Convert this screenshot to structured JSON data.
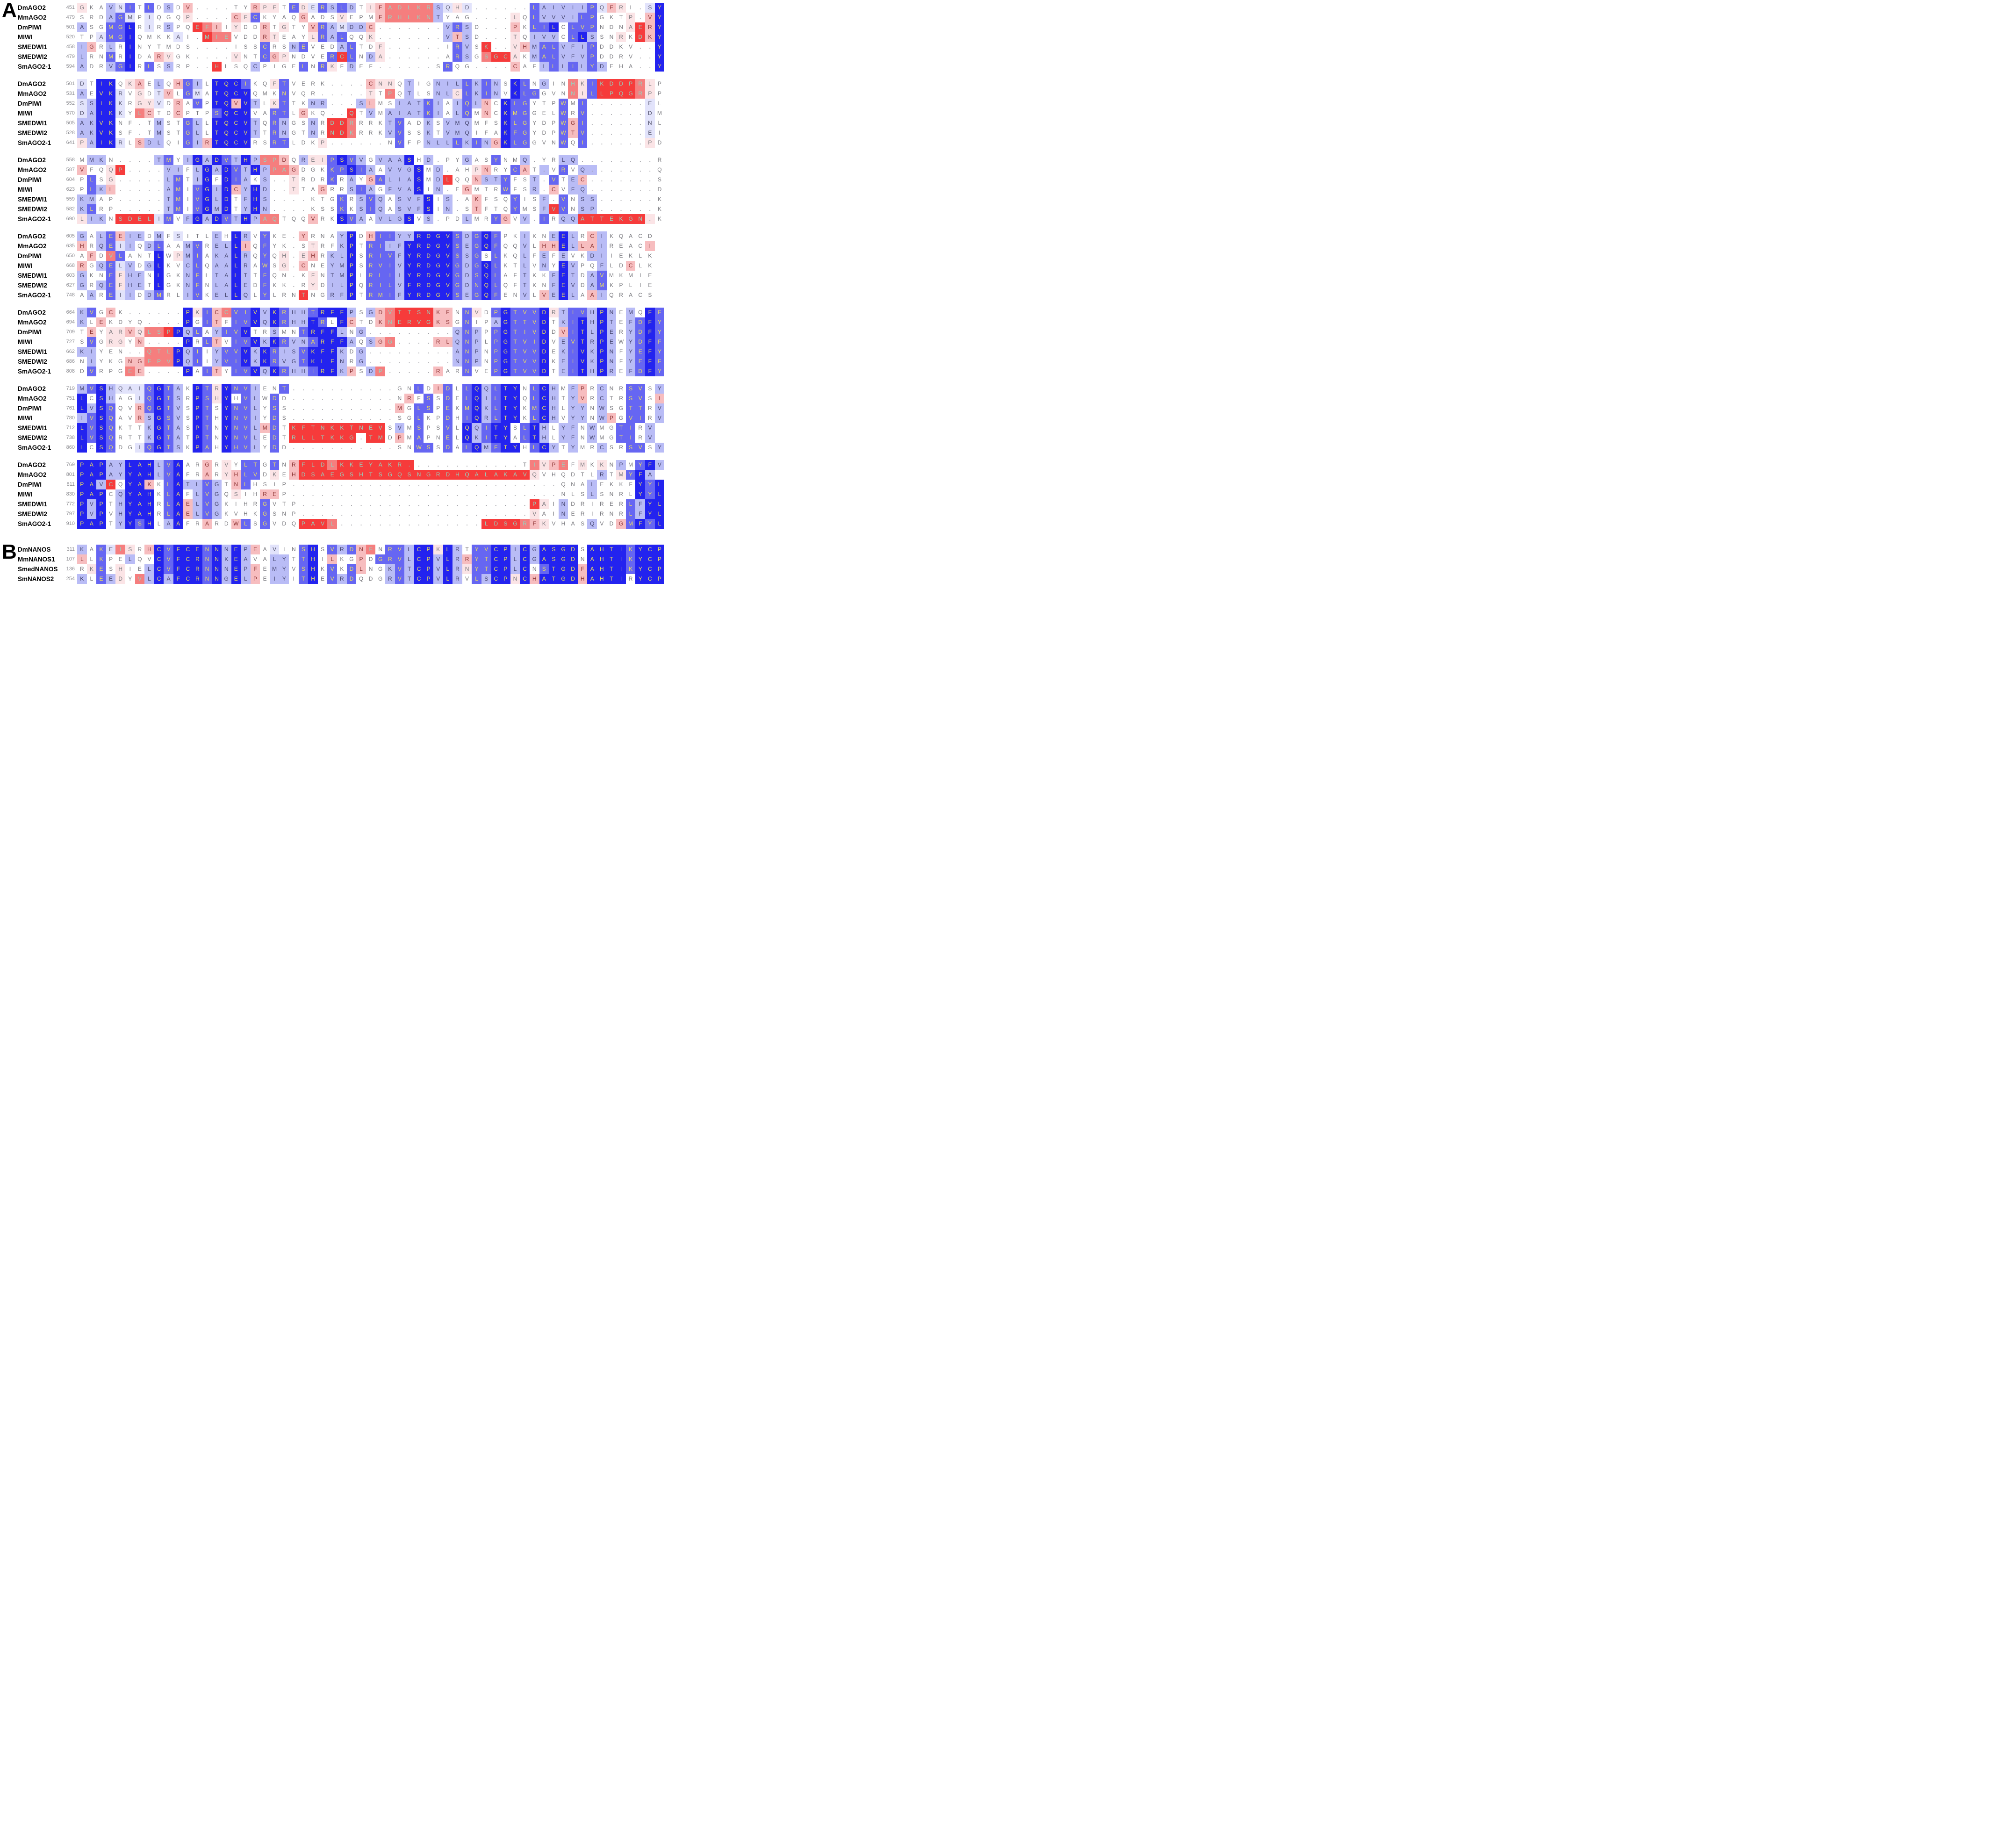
{
  "figure": {
    "panel_a_label": "A",
    "panel_b_label": "B"
  },
  "palette": {
    "0": "#2323ef",
    "1": "#6666f2",
    "2": "#b9bcf6",
    "3": "#e2e3fb",
    "4": "#ffffff",
    "5": "#fbe4e6",
    "6": "#f7bdbf",
    "7": "#f57e7e",
    "8": "#f63b3b"
  },
  "letter_colors": {
    "0": "#f0e05a",
    "1": "#f0e05a",
    "2": "#45456e",
    "3": "#55556e",
    "4": "#77777c",
    "5": "#77777c",
    "6": "#8c3333",
    "7": "#8fd7c2",
    "8": "#8fd7c2",
    "dot": "#9a9aa0"
  },
  "panel_a": {
    "blocks": [
      {
        "rows": [
          {
            "label": "DmAGO2",
            "start": "451",
            "seq": "GKAVNITLDSDV....TYRPFTEDERSLDTIFADLKRSQHD......LAIVIIPQFRI.SY",
            "col": "5442314142464444446554153121245677777235344444412222213654430"
          },
          {
            "label": "MmAGO2",
            "start": "479",
            "seq": "SRDAGMPIQGQP....CFCKYAQGADSVEPMFRHLKNTYAG....LQLVVVILPGKTP.VY",
            "col": "4442134344454444651444464445444677777244444445412222114445460"
          },
          {
            "label": "DmPIWI",
            "start": "501",
            "seq": "ASGMGLRIRSPQEFIIYDDRTGTYVRAMDDC.......VRSD...PKLILCLVPNDNAERY",
            "col": "2441104342448764544645446123226444444421244446411041114445860"
          },
          {
            "label": "MIWI",
            "start": "520",
            "seq": "TPAMGIQMKKAI.MIEVDDRTEAYLRALQQK.......VTSD...TQIVVCLLSSNRKDKY",
            "col": "4431104444344877444654445121445444444426244445422241024454860"
          },
          {
            "label": "SMEDWI1",
            "start": "458",
            "seq": "IGRLRINYTMDS....ISSCRSNEVEDALTDF......IRVSK..VHMALVFIPDDKV..Y",
            "col": "2642404444444444444144214442144544444441248445621122214444440"
          },
          {
            "label": "SMEDWI2",
            "start": "479",
            "seq": "LRNMRIDARVGK....VNTCGPNDVERCLNDA......ARSGSGCAKMALVFVPDDRV..Y",
            "col": "2441404465444444544165444418142544444441247885421122214444440"
          },
          {
            "label": "SmAGO2-1",
            "start": "594",
            "seq": "ADRVGIRLSSRP..HLSQCPIGELNRKFDEF......SRQG....CAFLLLILYDEHA..Y",
            "col": "2442104142444484442444414154244444444414444446442121212444440"
          }
        ]
      },
      {
        "rows": [
          {
            "label": "DmAGO2",
            "start": "501",
            "seq": "DTIKQKAELQHGILTQCIKQFTVERK....CNNQTIGNILLKINSKLNGINHKIKDDPRLP",
            "col": "3400456424612400014451444444446554244222121240142447518888754"
          },
          {
            "label": "MmAGO2",
            "start": "531",
            "seq": "AEVKRVGDTVLGMATQCVQMKNVQR.....TTPQTLSNLCLKINVKLGGVNNILLPQGRPP",
            "col": "2400345436413400004441444444445474244225121240114447518888754"
          },
          {
            "label": "DmPIWI",
            "start": "552",
            "seq": "SSIKKRGYVDRAVPTQVVTLKTTKNR...SLMSIATKIAIQLNCKLGYTPWMI......EL",
            "col": "3200345534641400602451442244426442221242126401144414144444434"
          },
          {
            "label": "MIWI",
            "start": "570",
            "seq": "DAIKKYLCTDCPTPSQCVVARTLGKQ..QTVMAIATKIALQMNCKMGGELWRV......DM",
            "col": "3200347644644410004411464444842422221242146401144414144444434"
          },
          {
            "label": "SMEDWI1",
            "start": "505",
            "seq": "AKVKNF.TMSTGLLTQCVTQRNGSNRDDRRRKTVADKSVMQMFSKLGYDPWGI......NL",
            "col": "2200444424412400002412442488744421442422244401144416144444434"
          },
          {
            "label": "SMEDWI2",
            "start": "528",
            "seq": "AKVKSF.TMSTGLLTQCVTTRNGTNRNDKRRKVVSSKTVMQIFAKFGYDPWTV......EI",
            "col": "2200444424412400002412442488744421442422244401144416144444434"
          },
          {
            "label": "SmAGO2-1",
            "start": "641",
            "seq": "PAIKRLSDLQIGIRTQCVRSRTLDKP......NVFPNLLLKINGKLGGVNWQI......PD",
            "col": "5200346224412600004411444544444441442221212601144414144444454"
          }
        ]
      },
      {
        "rows": [
          {
            "label": "DmAGO2",
            "start": "558",
            "seq": "MMKN....TMYIGADVTHPSPDQREIPSVVGVAASHD.PYGASYNMQ.YRLQ........R",
            "col": "4224444421420201202776425510124222042444244144244422444444444"
          },
          {
            "label": "MmAGO2",
            "start": "587",
            "seq": "VFQQP....VIFLGADVTHPPAGDGKKPSIAAVVGSMD.AHPNRYCAT.VRVQ.......Q",
            "col": "6445844442242020120277644411012422204244456441642414224444444"
          },
          {
            "label": "DmPIWI",
            "start": "604",
            "seq": "PLSG.....LMTIGFDIAKS..TRDRKRAYGALIASMDLQQNSTYFST.VTEC.......S",
            "col": "4145444442142040124244544414246122204284462214424142644444444"
          },
          {
            "label": "MIWI",
            "start": "623",
            "seq": "PLKL.....AMIVGIDCYHD..TTAGRRSIAGFVASIN.EGMTRWFSR.CVFQ.......D",
            "col": "4126444442141020620244544644212422204244644414424642244444444"
          },
          {
            "label": "SMEDWI1",
            "start": "559",
            "seq": "KMAP.....TMIVGLDTFHS....KTGKRSVQASVFSIS.AKFSQYISF.VNSS......K",
            "col": "2244444442141020420244444441421242220424464441442414224444444"
          },
          {
            "label": "SMEDWI2",
            "start": "582",
            "seq": "KLRP.....TMIVGMDTYHN....KSSKKSIQASVFSIN.STFTQYMSFVVNSP......K",
            "col": "2144444442141020420244444441421242220424464441442814224444444"
          },
          {
            "label": "SmAGO2-1",
            "start": "690",
            "seq": "LIKNSDELIMVFGADVTHPAQTQQVRKSVAAVLGSVS.PDLMRYGVV.IRQQATTEKGN.K",
            "col": "5224888831420201202774446440124222042444244164241422888888854"
          }
        ]
      },
      {
        "rows": [
          {
            "label": "DmAGO2",
            "start": "605",
            "seq": "GALEEIEDMFSITLEHLRVYKE.YRNAYPDHIIYYRDGVSDGQFPKIKNEELRCIKQACD",
            "col": "242162242434442402414446444204611220000121014424420246244444"
          },
          {
            "label": "MmAGO2",
            "start": "635",
            "seq": "HRQEIIQDLAAMVRELLIQFYK.STRFKPTRIIFYRDGVSEGQFQQVLHHELLAIREACI",
            "col": "642132421442142206414444544204112200000121014424660266244446"
          },
          {
            "label": "DmPIWI",
            "start": "650",
            "seq": "AFDVLANTLWPMIAKALRQYQH.EHRKLPSRIVFYRDGVSSGSLKQLFEFEVKDIIEKLK",
            "col": "464714440452142202414545642204111200000121414424242442244444"
          },
          {
            "label": "MIWI",
            "start": "668",
            "seq": "RGQELVDGLKVCLQAALRAWSG.CNEYMPSRVIVYRDGVGDGQLKTLVNYEVPQFLDCLK",
            "col": "642132420442142202414546442204111200000121014424240244244644"
          },
          {
            "label": "SMEDWI1",
            "start": "603",
            "seq": "GKNEFHENLGKNFLTALTTFQN.KFNTMPLRLIIYRDGVGDSQLAFTKKFETDAVMKMIE",
            "col": "244152240442142202414444542204111200000121014424420242144444"
          },
          {
            "label": "SMEDWI2",
            "start": "627",
            "seq": "GRQEFHETLGKNFNLALEDFKK.RYDILPQRILVFRDGVGDNQLQFTKNFEVDAMKPLIE",
            "col": "242152240442142202414444542204111200000121014424420242144444"
          },
          {
            "label": "SmAGO2-1",
            "start": "748",
            "seq": "AAREIIDDMRLIVKELLQLYLRNTNGRFPTRMIFYRDGVSEGQFENVLVEELAAIQRACS",
            "col": "424132421442142202414448442204111200000121014424620246244444"
          }
        ]
      },
      {
        "rows": [
          {
            "label": "DmAGO2",
            "start": "664",
            "seq": "KVGCK......PKICCVIVVKRHHTRFFPSGDVTTSNKFNNVDPGTVVDRTIVHPNEMQFF",
            "col": "2146444444405167110201221000242678888664154101110521120242401"
          },
          {
            "label": "MmAGO2",
            "start": "694",
            "seq": "KLEKDYQ....PGITFIVVQKRHHTRLFCTDKNERVGKSGNIPAGTTVDTKITHPTEFDFY",
            "col": "2464444444404164110201220140644678888664144201110421020242101"
          },
          {
            "label": "DmPIWI",
            "start": "709",
            "seq": "TEYARVQLSPPQLAYIVVTRSMNTRFFLNG.........QNPPPGTIVDDVITLPERYDFY",
            "col": "4645565778021421104424410002424444444442124101110461020242101"
          },
          {
            "label": "MIWI",
            "start": "727",
            "seq": "SVGRGYN....PRLTVIVVKKRVNARFFAQSGG....RLQNPLPGTVIDVEVTRPEWYDFF",
            "col": "4145546444404164110201221000242674444662124101110421020242101"
          },
          {
            "label": "SMEDWI1",
            "start": "662",
            "seq": "KIYEN..QTLPQIIYVVVKKRISVKFFKDG.........ANPNPGTVVDEKIVKPNFYEFY",
            "col": "2244444777021421102012210002424444444442124101110421020242101"
          },
          {
            "label": "SMEDWI2",
            "start": "686",
            "seq": "NIYKGNGFPVPQIIYVIVKKRVGTKLFNRG.........NNPNPGTVVDKEIVKPNFYEFF",
            "col": "4244466777021421102012210002424444444442124101110421020242101"
          },
          {
            "label": "SmAGO2-1",
            "start": "808",
            "seq": "DVRPGEE....PAITYIVVQKRHHIRFKPSDP.....RARNVEPGTVVDTEITHPREFDFY",
            "col": "4144476444404164110201221002642744444644144101110421020242101"
          }
        ]
      },
      {
        "rows": [
          {
            "label": "DmAGO2",
            "start": "719",
            "seq": "MVSHQAIQGTAKPTRYNVIENT...........GNLDIDLLQQLTYNLCHMFPRCNRSVSY",
            "col": "2102333101240150112441444444444444414614102100410242642441142"
          },
          {
            "label": "MmAGO2",
            "start": "751",
            "seq": "LCSHAGIQGTSRPSHYHVLWDD...........NRFSSDELQILTYQLCHTYVRCTRSVSI",
            "col": "0402443101240150412414444444444444641414102100410242642441146"
          },
          {
            "label": "DmPIWI",
            "start": "761",
            "seq": "LVSQQVRQGTVSPTSYNVLYSS...........MGLSPEKMQKLTYKMCHLYYNWSGTTRV",
            "col": "0201446101240140112414444444444446411414102100410242242441142"
          },
          {
            "label": "MIWI",
            "start": "780",
            "seq": "IVSQAVRSGSVSPTHYNVIYDS...........SGLKPDHIQRLTYKLCHVYYNWPGVIRV",
            "col": "2101446201240140112414444444444444414414102100410242242641142"
          },
          {
            "label": "SMEDWI1",
            "start": "712",
            "seq": "LVSQKTTKGTASPTNYNVLMDTKFTNKKTNEVSVMSPSVLQQITYSLTHLYFNWMGTIRV",
            "col": "010144420124014011261488888888884241441402100410242242441142"
          },
          {
            "label": "SMEDWI2",
            "start": "738",
            "seq": "LVSQRTTKGTATPTNYNVLEDTRLLTKKG.TMDPMAPNELQKITYALTHLYFNWMGTIRV",
            "col": "010144420124014011241488888884884641441402100410242242441142"
          },
          {
            "label": "SmAGO2-1",
            "start": "860",
            "seq": "LCSQDGIQGTSKPAHYHVLYDD...........SNWSSDALQMFTYHLCYTYMRCSRSVSY",
            "col": "0401443101240140112414444444444444411414102100410242442441142"
          }
        ]
      },
      {
        "rows": [
          {
            "label": "DmAGO2",
            "start": "769",
            "seq": "PAPAYLAHLVAARGRVYLTGTNRFLDLKKEYAKR............TIVPEFMKKNPMYFV",
            "col": "0002200021044645411414688878888888844444444444475674545424102"
          },
          {
            "label": "MmAGO2",
            "start": "801",
            "seq": "PAPAYYAHLVAFRARYHLVDKEHDSAEGSHTSGQSNGRDHQALAKAVQVHQDTLRTMYFA",
            "col": "000220002104464561145468888888888888888888888885444444245102"
          },
          {
            "label": "DmPIWI",
            "start": "811",
            "seq": "PAVCQYAKKLATLVGTNLHSIP............................QNALEKKFYYL",
            "col": "0028400641022124614444444444444444444444444444444444424444010"
          },
          {
            "label": "MIWI",
            "start": "830",
            "seq": "PAPCQYAHKLAFLVGQSIHREP............................NLSLSNRLYYL",
            "col": "0004200041042124544664444444444444444444444444444444424444010"
          },
          {
            "label": "SMEDWI1",
            "start": "772",
            "seq": "PVPTHYAHRLAELVGKIHRGVTP........................PAINDRIRERLFYL",
            "col": "0204200041062124444144444444444444444444444444485424444441200"
          },
          {
            "label": "SMEDWI2",
            "start": "797",
            "seq": "PVPVHYAHRLAELVGKVHKGSNP........................VAINERIRNRLFYL",
            "col": "0204200041062124444144444444444444444444444444454424444441200"
          },
          {
            "label": "SmAGO2-1",
            "start": "910",
            "seq": "PAPTYYSHLAAFRARDWLSGVDQPAVL...............LDSGRFKVHASQVDGMFYL",
            "col": "0004201042044644614144488874444444444444448888765444424461010"
          }
        ]
      }
    ]
  },
  "panel_b": {
    "blocks": [
      {
        "rows": [
          {
            "label": "DmNANOS",
            "start": "311",
            "seq": "KAKEISRHCVFCENNNEPEAVINSHSVRDNFNRVLCPKLRTYVCPICGASGDSAHTIKYCP",
            "col": "2413754601000102026434410412167411200502411002020000400001000"
          },
          {
            "label": "MmNANOS1",
            "start": "107",
            "seq": "LLKPELQVCVFCRNNKEAVALYTTHILKGPDGRVLCPVLRRYTCPLCGASGDNAHTIKYCP",
            "col": "6414424401000102024422410464464111200202611002020000400001000"
          },
          {
            "label": "SmedNANOS",
            "start": "136",
            "seq": "RKESHIELCVFCRNNNEPFEMYVSHKVKDLNGKVTCPVLRNYTCPLCNSTGDFAHTIKYCP",
            "col": "4514544201000102026422410414164421200202511002041000600001000"
          },
          {
            "label": "SmNANOS2",
            "start": "254",
            "seq": "KLEEDYVLCAFCRNNGELPEIYITHEVRDQDGRVTCPVLRVLSCPNCHATGDHAHTIRYCP",
            "col": "2412547202000102026422410412144421200202412005060000600004000"
          }
        ]
      }
    ]
  }
}
